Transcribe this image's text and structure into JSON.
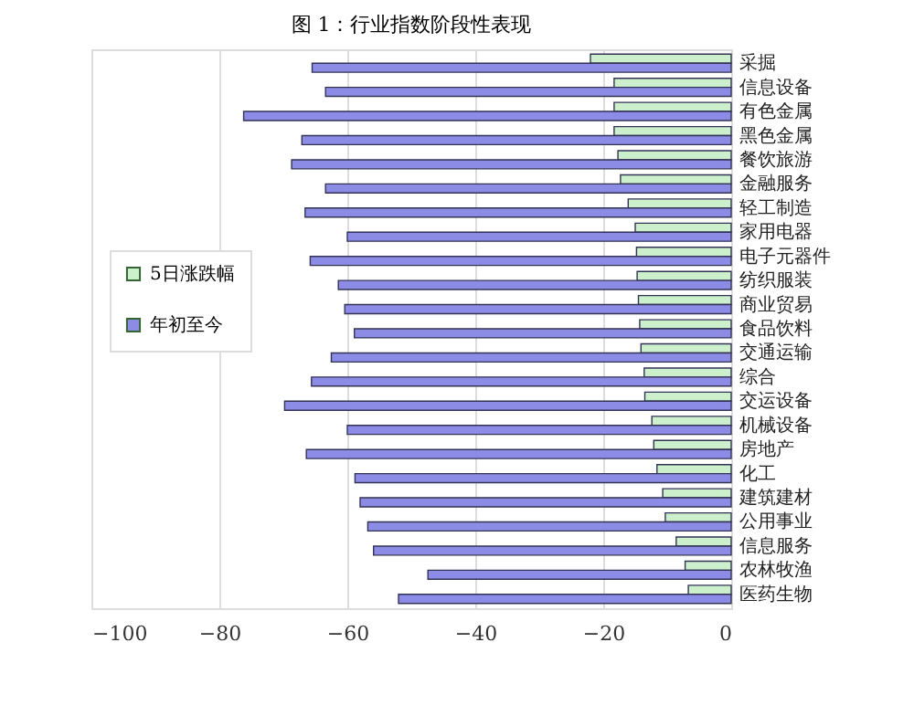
{
  "chart_data": {
    "type": "bar",
    "orientation": "horizontal",
    "title": "图 1：行业指数阶段性表现",
    "categories": [
      "采掘",
      "信息设备",
      "有色金属",
      "黑色金属",
      "餐饮旅游",
      "金融服务",
      "轻工制造",
      "家用电器",
      "电子元器件",
      "纺织服装",
      "商业贸易",
      "食品饮料",
      "交通运输",
      "综合",
      "交运设备",
      "机械设备",
      "房地产",
      "化工",
      "建筑建材",
      "公用事业",
      "信息服务",
      "农林牧渔",
      "医药生物"
    ],
    "series": [
      {
        "name": "5日涨跌幅",
        "color": "#ccf0cc",
        "values": [
          -22,
          -18.3,
          -18.3,
          -18.3,
          -17.7,
          -17.3,
          -16.1,
          -15,
          -14.8,
          -14.7,
          -14.5,
          -14.3,
          -14.1,
          -13.6,
          -13.5,
          -12.4,
          -12.1,
          -11.6,
          -10.7,
          -10.3,
          -8.6,
          -7.2,
          -6.7
        ]
      },
      {
        "name": "年初至今",
        "color": "#8c8ce6",
        "values": [
          -65.5,
          -63.4,
          -76.2,
          -67.1,
          -68.7,
          -63.4,
          -66.6,
          -60,
          -65.8,
          -61.4,
          -60.4,
          -58.9,
          -62.5,
          -65.6,
          -69.8,
          -60,
          -66.4,
          -58.8,
          -58,
          -56.8,
          -55.9,
          -47.4,
          -52
        ]
      }
    ],
    "xlim": [
      -100,
      0
    ],
    "xticks": [
      -100,
      -80,
      -60,
      -40,
      -20,
      0
    ],
    "grid": "x",
    "legend": "left"
  }
}
